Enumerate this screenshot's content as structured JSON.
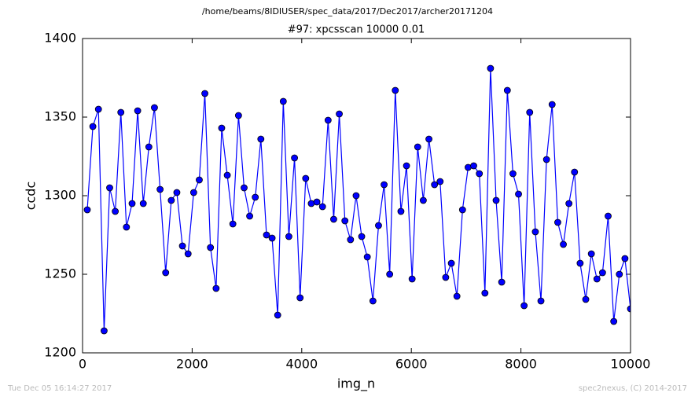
{
  "chart_data": {
    "type": "line",
    "suptitle": "/home/beams/8IDIUSER/spec_data/2017/Dec2017/archer20171204",
    "title": "#97: xpcsscan 10000 0.01",
    "xlabel": "img_n",
    "ylabel": "ccdc",
    "footer_left": "Tue Dec 05 16:14:27 2017",
    "footer_right": "spec2nexus, (C) 2014-2017",
    "x": [
      86,
      188,
      290,
      393,
      495,
      597,
      699,
      801,
      904,
      1006,
      1108,
      1210,
      1312,
      1415,
      1517,
      1619,
      1721,
      1823,
      1926,
      2028,
      2130,
      2232,
      2334,
      2437,
      2539,
      2641,
      2743,
      2846,
      2948,
      3050,
      3152,
      3254,
      3357,
      3459,
      3561,
      3663,
      3765,
      3868,
      3970,
      4072,
      4174,
      4276,
      4379,
      4481,
      4583,
      4685,
      4788,
      4890,
      4992,
      5094,
      5196,
      5299,
      5401,
      5503,
      5605,
      5707,
      5810,
      5912,
      6014,
      6116,
      6218,
      6321,
      6423,
      6525,
      6627,
      6730,
      6832,
      6934,
      7036,
      7138,
      7241,
      7343,
      7445,
      7547,
      7649,
      7752,
      7854,
      7956,
      8058,
      8160,
      8263,
      8365,
      8467,
      8569,
      8672,
      8774,
      8876,
      8978,
      9080,
      9183,
      9285,
      9387,
      9489,
      9591,
      9694,
      9796,
      9898,
      10000
    ],
    "series": [
      {
        "color": "#0000ff",
        "values": [
          1291,
          1344,
          1355,
          1214,
          1305,
          1290,
          1353,
          1280,
          1295,
          1354,
          1295,
          1331,
          1356,
          1304,
          1251,
          1297,
          1302,
          1268,
          1263,
          1302,
          1310,
          1365,
          1267,
          1241,
          1343,
          1313,
          1282,
          1351,
          1305,
          1287,
          1299,
          1336,
          1275,
          1273,
          1224,
          1360,
          1274,
          1324,
          1235,
          1311,
          1295,
          1296,
          1293,
          1348,
          1285,
          1352,
          1284,
          1272,
          1300,
          1274,
          1261,
          1233,
          1281,
          1307,
          1250,
          1367,
          1290,
          1319,
          1247,
          1331,
          1297,
          1336,
          1307,
          1309,
          1248,
          1257,
          1236,
          1291,
          1318,
          1319,
          1314,
          1238,
          1381,
          1297,
          1245,
          1367,
          1314,
          1301,
          1230,
          1353,
          1277,
          1233,
          1323,
          1358,
          1283,
          1269,
          1295,
          1315,
          1257,
          1234,
          1263,
          1247,
          1251,
          1287,
          1220,
          1250,
          1260,
          1228
        ]
      }
    ],
    "xlim": [
      0,
      10000
    ],
    "xticks": [
      0,
      2000,
      4000,
      6000,
      8000,
      10000
    ],
    "ylim": [
      1200,
      1400
    ],
    "yticks": [
      1200,
      1250,
      1300,
      1350,
      1400
    ],
    "grid": false
  }
}
